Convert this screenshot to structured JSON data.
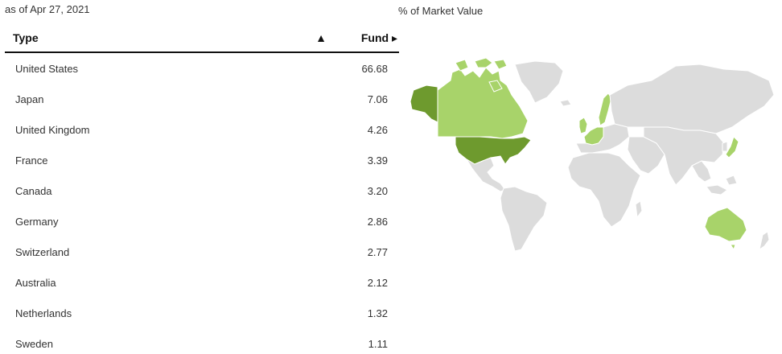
{
  "as_of": "as of Apr 27, 2021",
  "map_title": "% of Market Value",
  "table": {
    "header_type": "Type",
    "sort_icon": "▲",
    "header_fund": "Fund ▸",
    "rows": [
      {
        "country": "United States",
        "value": "66.68"
      },
      {
        "country": "Japan",
        "value": "7.06"
      },
      {
        "country": "United Kingdom",
        "value": "4.26"
      },
      {
        "country": "France",
        "value": "3.39"
      },
      {
        "country": "Canada",
        "value": "3.20"
      },
      {
        "country": "Germany",
        "value": "2.86"
      },
      {
        "country": "Switzerland",
        "value": "2.77"
      },
      {
        "country": "Australia",
        "value": "2.12"
      },
      {
        "country": "Netherlands",
        "value": "1.32"
      },
      {
        "country": "Sweden",
        "value": "1.11"
      }
    ]
  },
  "map": {
    "colors": {
      "high": "#6e9a2e",
      "low": "#a8d36a",
      "none": "#dcdcdc"
    },
    "highlighted_high": [
      "United States",
      "Alaska"
    ],
    "highlighted_low": [
      "Canada",
      "Japan",
      "United Kingdom",
      "France",
      "Germany",
      "Switzerland",
      "Australia",
      "Netherlands",
      "Sweden"
    ]
  }
}
